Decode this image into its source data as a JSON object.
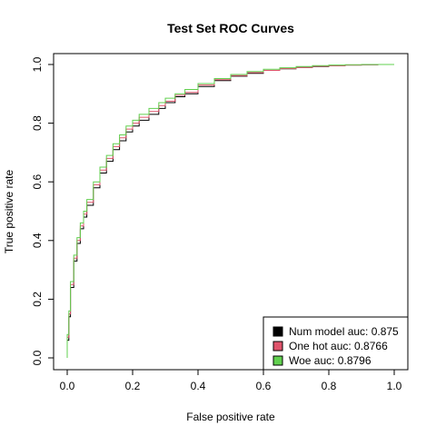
{
  "chart_data": {
    "type": "line",
    "title": "Test Set ROC Curves",
    "xlabel": "False positive rate",
    "ylabel": "True positive rate",
    "xlim": [
      0,
      1
    ],
    "ylim": [
      0,
      1
    ],
    "xticks": [
      0.0,
      0.2,
      0.4,
      0.6,
      0.8,
      1.0
    ],
    "yticks": [
      0.0,
      0.2,
      0.4,
      0.6,
      0.8,
      1.0
    ],
    "xtick_labels": [
      "0.0",
      "0.2",
      "0.4",
      "0.6",
      "0.8",
      "1.0"
    ],
    "ytick_labels": [
      "0.0",
      "0.2",
      "0.4",
      "0.6",
      "0.8",
      "1.0"
    ],
    "grid": false,
    "legend_position": "bottom-right",
    "series": [
      {
        "name": "Num model auc: 0.875",
        "color": "#000000",
        "x": [
          0.0,
          0.0,
          0.005,
          0.01,
          0.02,
          0.03,
          0.04,
          0.05,
          0.06,
          0.08,
          0.1,
          0.12,
          0.14,
          0.16,
          0.18,
          0.2,
          0.22,
          0.25,
          0.28,
          0.3,
          0.33,
          0.36,
          0.4,
          0.45,
          0.5,
          0.55,
          0.6,
          0.65,
          0.7,
          0.75,
          0.8,
          0.85,
          0.9,
          0.95,
          1.0
        ],
        "y": [
          0.0,
          0.06,
          0.14,
          0.24,
          0.33,
          0.39,
          0.44,
          0.48,
          0.52,
          0.58,
          0.63,
          0.67,
          0.71,
          0.74,
          0.77,
          0.79,
          0.81,
          0.83,
          0.85,
          0.87,
          0.89,
          0.9,
          0.925,
          0.945,
          0.96,
          0.97,
          0.98,
          0.985,
          0.99,
          0.993,
          0.996,
          0.998,
          0.999,
          1.0,
          1.0
        ]
      },
      {
        "name": "One hot auc: 0.8766",
        "color": "#df536b",
        "x": [
          0.0,
          0.0,
          0.005,
          0.01,
          0.02,
          0.03,
          0.04,
          0.05,
          0.06,
          0.08,
          0.1,
          0.12,
          0.14,
          0.16,
          0.18,
          0.2,
          0.22,
          0.25,
          0.28,
          0.3,
          0.33,
          0.36,
          0.4,
          0.45,
          0.5,
          0.55,
          0.6,
          0.65,
          0.7,
          0.75,
          0.8,
          0.85,
          0.9,
          0.95,
          1.0
        ],
        "y": [
          0.0,
          0.07,
          0.15,
          0.25,
          0.34,
          0.4,
          0.45,
          0.49,
          0.53,
          0.59,
          0.64,
          0.68,
          0.72,
          0.75,
          0.78,
          0.8,
          0.82,
          0.84,
          0.86,
          0.875,
          0.895,
          0.905,
          0.93,
          0.948,
          0.962,
          0.972,
          0.98,
          0.986,
          0.99,
          0.994,
          0.996,
          0.998,
          0.999,
          1.0,
          1.0
        ]
      },
      {
        "name": "Woe auc: 0.8796",
        "color": "#61d04f",
        "x": [
          0.0,
          0.0,
          0.005,
          0.01,
          0.02,
          0.03,
          0.04,
          0.05,
          0.06,
          0.08,
          0.1,
          0.12,
          0.14,
          0.16,
          0.18,
          0.2,
          0.22,
          0.25,
          0.28,
          0.3,
          0.33,
          0.36,
          0.4,
          0.45,
          0.5,
          0.55,
          0.6,
          0.65,
          0.7,
          0.75,
          0.8,
          0.85,
          0.9,
          0.95,
          1.0
        ],
        "y": [
          0.0,
          0.08,
          0.16,
          0.26,
          0.35,
          0.41,
          0.46,
          0.5,
          0.54,
          0.6,
          0.65,
          0.69,
          0.73,
          0.76,
          0.79,
          0.81,
          0.83,
          0.85,
          0.87,
          0.885,
          0.9,
          0.915,
          0.935,
          0.952,
          0.966,
          0.976,
          0.984,
          0.989,
          0.993,
          0.996,
          0.998,
          0.999,
          1.0,
          1.0,
          1.0
        ]
      }
    ]
  }
}
